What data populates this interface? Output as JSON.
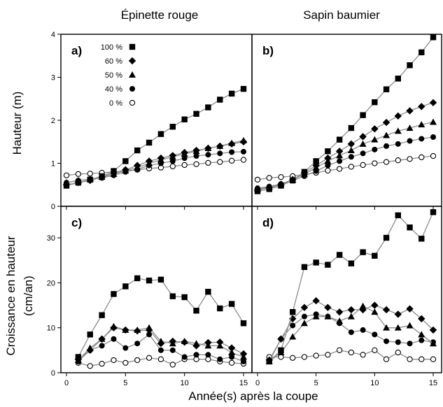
{
  "figure": {
    "col_titles": [
      "Épinette rouge",
      "Sapin baumier"
    ],
    "ylabel_top": "Hauteur (m)",
    "ylabel_bottom_line1": "Croissance en hauteur",
    "ylabel_bottom_line2": "(cm/an)",
    "xlabel": "Année(s) après la coupe"
  },
  "legend": {
    "placement": "top-left of panel a",
    "entries": [
      {
        "label": "100 %",
        "marker": "square"
      },
      {
        "label": "60 %",
        "marker": "diamond"
      },
      {
        "label": "50 %",
        "marker": "triangle"
      },
      {
        "label": "40 %",
        "marker": "circle"
      },
      {
        "label": "0 %",
        "marker": "open-circle"
      }
    ]
  },
  "colors": {
    "line": "#8c8c8c",
    "marker": "#000000",
    "axis": "#000000"
  },
  "chart_data": [
    {
      "panel": "a)",
      "type": "line",
      "ylim": [
        0,
        4
      ],
      "yticks": [
        0,
        1,
        2,
        3,
        4
      ],
      "xlim": [
        0,
        15
      ],
      "xticks": [
        0,
        5,
        10,
        15
      ],
      "x": [
        0,
        1,
        2,
        3,
        4,
        5,
        6,
        7,
        8,
        9,
        10,
        11,
        12,
        13,
        14,
        15
      ],
      "series": [
        {
          "name": "100 %",
          "marker": "square",
          "values": [
            0.48,
            0.55,
            0.62,
            0.7,
            0.82,
            1.05,
            1.3,
            1.48,
            1.68,
            1.85,
            2.02,
            2.15,
            2.3,
            2.48,
            2.62,
            2.73
          ]
        },
        {
          "name": "60 %",
          "marker": "diamond",
          "values": [
            0.5,
            0.55,
            0.6,
            0.68,
            0.78,
            0.85,
            0.95,
            1.05,
            1.12,
            1.18,
            1.25,
            1.3,
            1.35,
            1.4,
            1.45,
            1.5
          ]
        },
        {
          "name": "50 %",
          "marker": "triangle",
          "values": [
            0.55,
            0.6,
            0.63,
            0.68,
            0.75,
            0.83,
            0.9,
            1.0,
            1.08,
            1.15,
            1.22,
            1.28,
            1.35,
            1.4,
            1.47,
            1.53
          ]
        },
        {
          "name": "40 %",
          "marker": "circle",
          "values": [
            0.55,
            0.6,
            0.63,
            0.66,
            0.72,
            0.8,
            0.86,
            0.95,
            1.0,
            1.05,
            1.12,
            1.17,
            1.2,
            1.23,
            1.26,
            1.27
          ]
        },
        {
          "name": "0 %",
          "marker": "open-circle",
          "values": [
            0.72,
            0.75,
            0.76,
            0.78,
            0.8,
            0.82,
            0.85,
            0.88,
            0.9,
            0.93,
            0.96,
            0.98,
            1.01,
            1.03,
            1.06,
            1.08
          ]
        }
      ]
    },
    {
      "panel": "b)",
      "type": "line",
      "ylim": [
        0,
        4
      ],
      "xlim": [
        0,
        15
      ],
      "xticks": [
        0,
        5,
        10,
        15
      ],
      "x": [
        0,
        1,
        2,
        3,
        4,
        5,
        6,
        7,
        8,
        9,
        10,
        11,
        12,
        13,
        14,
        15
      ],
      "series": [
        {
          "name": "100 %",
          "marker": "square",
          "values": [
            0.35,
            0.4,
            0.48,
            0.6,
            0.8,
            1.05,
            1.28,
            1.55,
            1.82,
            2.12,
            2.42,
            2.72,
            2.97,
            3.28,
            3.58,
            3.93
          ]
        },
        {
          "name": "60 %",
          "marker": "diamond",
          "values": [
            0.38,
            0.43,
            0.5,
            0.62,
            0.78,
            0.95,
            1.12,
            1.28,
            1.45,
            1.62,
            1.8,
            1.95,
            2.1,
            2.22,
            2.32,
            2.41
          ]
        },
        {
          "name": "50 %",
          "marker": "triangle",
          "values": [
            0.4,
            0.45,
            0.52,
            0.62,
            0.75,
            0.9,
            1.05,
            1.18,
            1.3,
            1.45,
            1.55,
            1.65,
            1.75,
            1.82,
            1.9,
            1.96
          ]
        },
        {
          "name": "40 %",
          "marker": "circle",
          "values": [
            0.42,
            0.46,
            0.52,
            0.6,
            0.7,
            0.82,
            0.95,
            1.05,
            1.15,
            1.23,
            1.32,
            1.4,
            1.45,
            1.52,
            1.57,
            1.61
          ]
        },
        {
          "name": "0 %",
          "marker": "open-circle",
          "values": [
            0.62,
            0.66,
            0.68,
            0.7,
            0.74,
            0.78,
            0.83,
            0.87,
            0.92,
            0.96,
            1.0,
            1.03,
            1.07,
            1.1,
            1.14,
            1.17
          ]
        }
      ]
    },
    {
      "panel": "c)",
      "type": "line",
      "ylim": [
        0,
        37
      ],
      "yticks": [
        0,
        10,
        20,
        30
      ],
      "xlim": [
        0,
        15
      ],
      "xticks": [
        0,
        5,
        10,
        15
      ],
      "xticklabels": [
        "0",
        "5",
        "10",
        "15"
      ],
      "x": [
        1,
        2,
        3,
        4,
        5,
        6,
        7,
        8,
        9,
        10,
        11,
        12,
        13,
        14,
        15
      ],
      "series": [
        {
          "name": "100 %",
          "marker": "square",
          "values": [
            3.5,
            8.5,
            12.8,
            17.5,
            19.2,
            21.0,
            20.5,
            20.7,
            17.0,
            16.8,
            13.8,
            18.0,
            14.3,
            15.3,
            11.0
          ]
        },
        {
          "name": "60 %",
          "marker": "diamond",
          "values": [
            3.0,
            5.0,
            7.5,
            10.0,
            9.5,
            9.3,
            9.5,
            6.5,
            7.0,
            6.8,
            6.0,
            6.7,
            6.8,
            5.5,
            4.2
          ]
        },
        {
          "name": "50 %",
          "marker": "triangle",
          "values": [
            2.8,
            5.5,
            7.5,
            10.3,
            9.5,
            9.5,
            10.0,
            7.0,
            6.5,
            7.0,
            6.5,
            6.0,
            6.0,
            4.5,
            3.5
          ]
        },
        {
          "name": "40 %",
          "marker": "circle",
          "values": [
            2.5,
            5.0,
            6.0,
            7.5,
            5.5,
            6.5,
            8.5,
            5.0,
            5.0,
            3.5,
            4.0,
            4.0,
            3.0,
            3.5,
            2.5
          ]
        },
        {
          "name": "0 %",
          "marker": "open-circle",
          "values": [
            2.2,
            1.5,
            2.0,
            2.8,
            2.2,
            2.8,
            3.3,
            3.0,
            1.8,
            3.0,
            3.0,
            3.0,
            2.5,
            2.2,
            2.0
          ]
        }
      ]
    },
    {
      "panel": "d)",
      "type": "line",
      "ylim": [
        0,
        37
      ],
      "xlim": [
        0,
        15
      ],
      "xticks": [
        0,
        5,
        10,
        15
      ],
      "xticklabels": [
        "0",
        "5",
        "10",
        "15"
      ],
      "x": [
        1,
        2,
        3,
        4,
        5,
        6,
        7,
        8,
        9,
        10,
        11,
        12,
        13,
        14,
        15
      ],
      "series": [
        {
          "name": "100 %",
          "marker": "square",
          "values": [
            2.5,
            5.0,
            13.5,
            23.5,
            24.5,
            24.0,
            26.2,
            24.3,
            26.8,
            26.0,
            30.0,
            35.0,
            32.3,
            29.8,
            35.7
          ]
        },
        {
          "name": "60 %",
          "marker": "diamond",
          "values": [
            2.8,
            7.5,
            12.0,
            14.5,
            16.0,
            14.5,
            13.5,
            14.0,
            14.0,
            15.0,
            14.0,
            13.0,
            14.2,
            12.0,
            9.5
          ]
        },
        {
          "name": "50 %",
          "marker": "triangle",
          "values": [
            2.5,
            4.5,
            8.0,
            11.0,
            12.5,
            12.5,
            11.5,
            12.5,
            14.8,
            13.5,
            10.0,
            10.0,
            10.5,
            8.5,
            6.5
          ]
        },
        {
          "name": "40 %",
          "marker": "circle",
          "values": [
            2.5,
            7.5,
            10.5,
            12.5,
            13.0,
            12.5,
            11.0,
            9.0,
            9.5,
            8.5,
            7.0,
            6.8,
            6.5,
            7.2,
            6.8
          ]
        },
        {
          "name": "0 %",
          "marker": "open-circle",
          "values": [
            3.5,
            3.5,
            3.3,
            3.5,
            3.8,
            4.0,
            5.0,
            4.5,
            4.0,
            5.0,
            3.0,
            4.5,
            3.0,
            3.0,
            3.0
          ]
        }
      ]
    }
  ]
}
